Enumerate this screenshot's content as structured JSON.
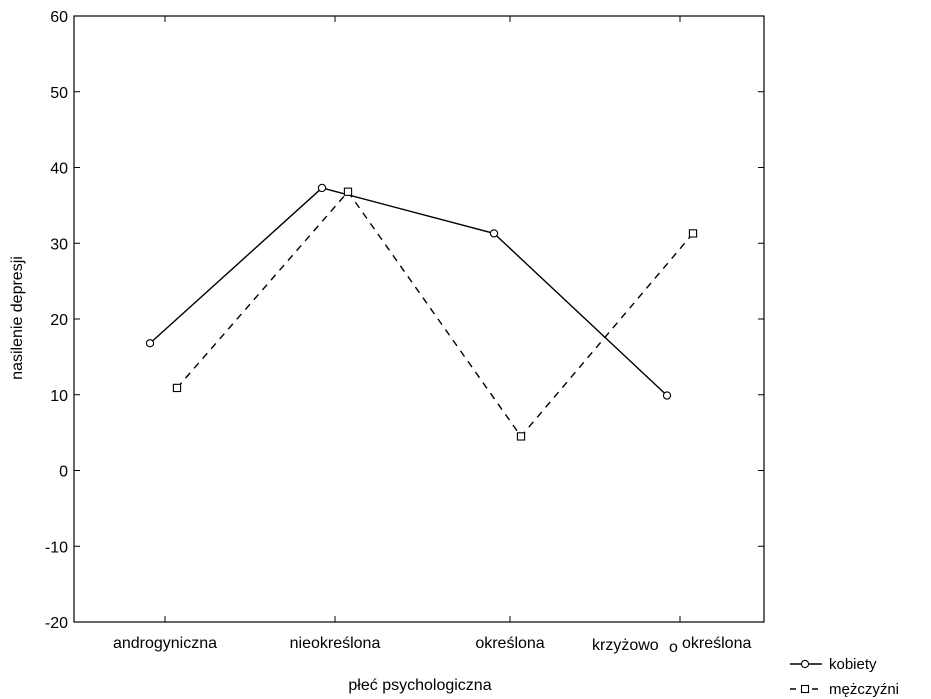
{
  "chart_data": {
    "type": "line",
    "title": "",
    "xlabel": "płeć psychologiczna",
    "ylabel": "nasilenie depresji",
    "ylim": [
      -20,
      60
    ],
    "yticks": [
      -20,
      -10,
      0,
      10,
      20,
      30,
      40,
      50,
      60
    ],
    "categories": [
      "androgyniczna",
      "nieokreślona",
      "określona",
      "krzyżowo określona"
    ],
    "category_labels": [
      "androgyniczna",
      "nieokreślona",
      "określona",
      "krzyżowo",
      "określona"
    ],
    "grid": false,
    "legend_position": "bottom-right",
    "series": [
      {
        "name": "kobiety",
        "values": [
          16.8,
          37.3,
          31.3,
          9.9
        ],
        "line_style": "solid",
        "marker": "circle",
        "color": "#000000"
      },
      {
        "name": "mężczyźni",
        "values": [
          10.9,
          36.8,
          4.5,
          31.3
        ],
        "line_style": "dashed",
        "marker": "square",
        "color": "#000000"
      }
    ]
  }
}
